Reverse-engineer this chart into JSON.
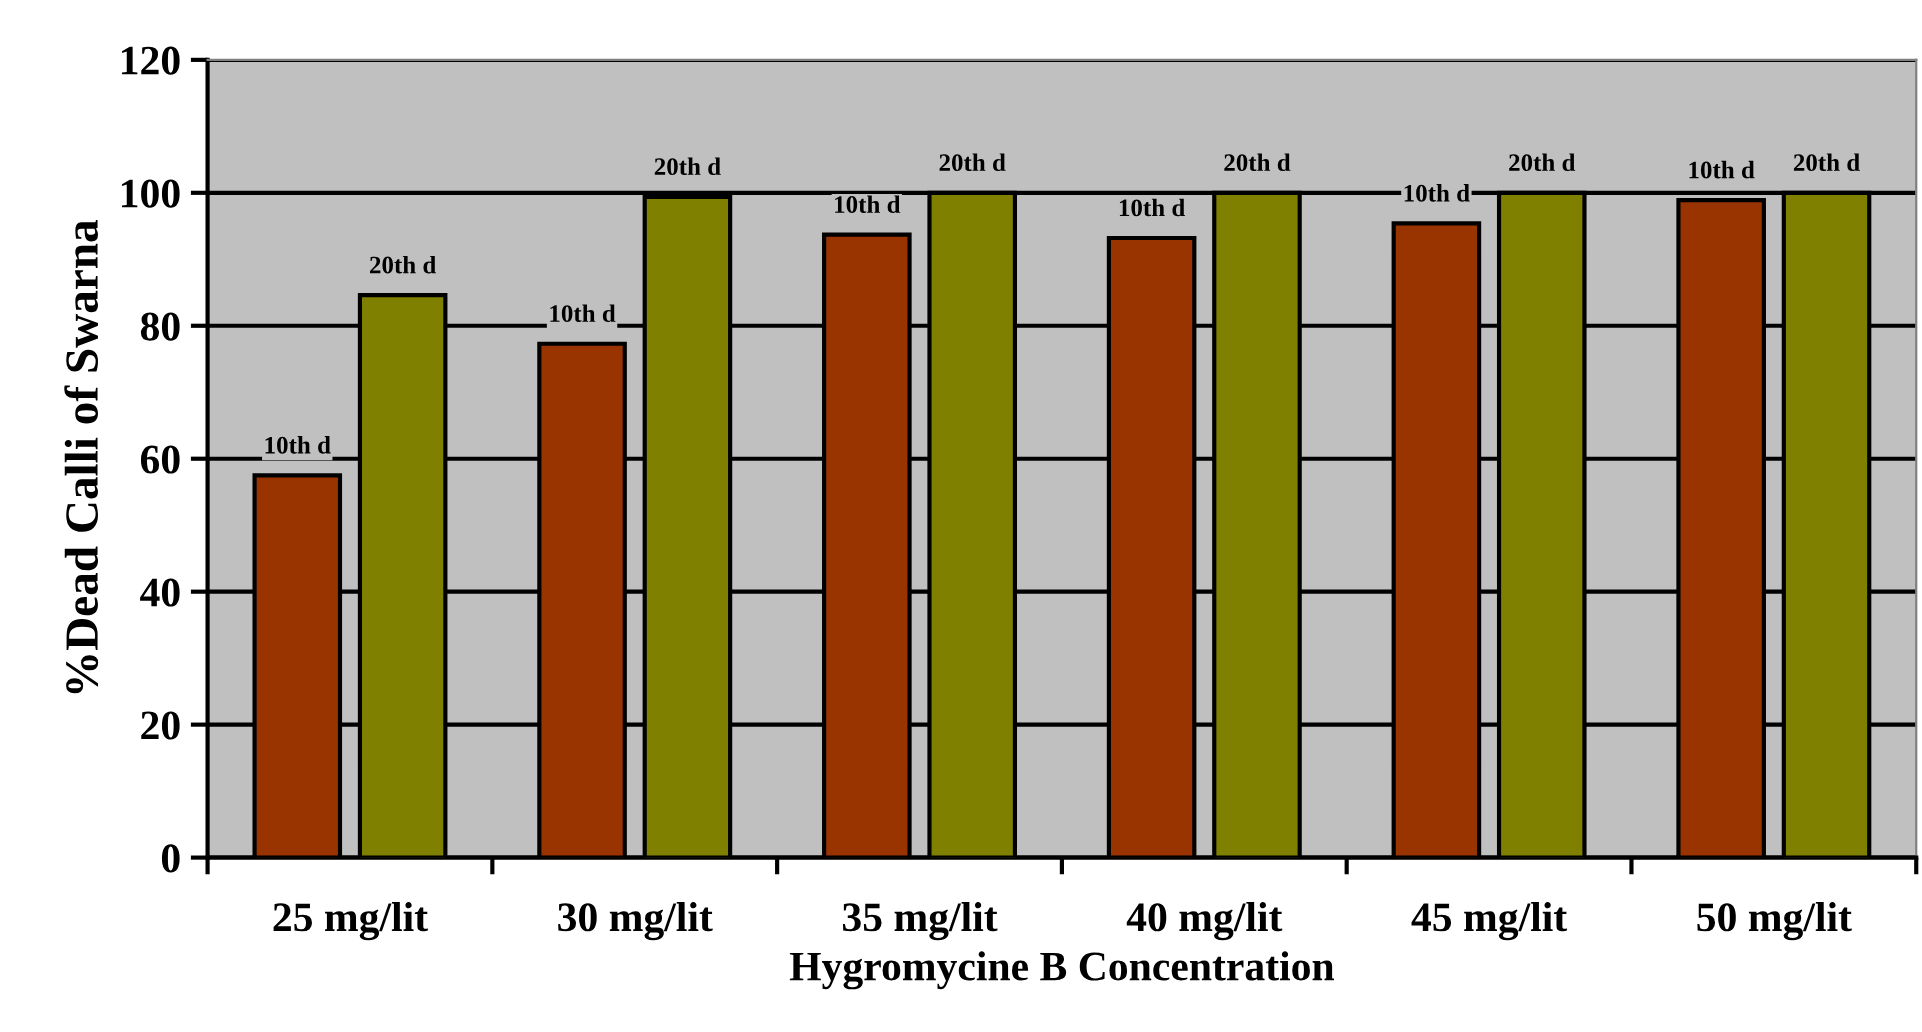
{
  "chart_data": {
    "type": "bar",
    "xlabel": "Hygromycine B Concentration",
    "ylabel": "%Dead Calli of Swarna",
    "categories": [
      "25 mg/lit",
      "30 mg/lit",
      "35 mg/lit",
      "40 mg/lit",
      "45 mg/lit",
      "50 mg/lit"
    ],
    "series": [
      {
        "name": "10th d",
        "color": "#993300",
        "values": [
          57.5,
          77.3,
          93.7,
          93.2,
          95.4,
          98.9
        ]
      },
      {
        "name": "20th d",
        "color": "#808000",
        "values": [
          84.6,
          99.4,
          100,
          100,
          100,
          100
        ]
      }
    ],
    "ylim": [
      0,
      120
    ],
    "yticks": [
      0,
      20,
      40,
      60,
      80,
      100,
      120
    ],
    "grid": "y",
    "legend": false
  }
}
